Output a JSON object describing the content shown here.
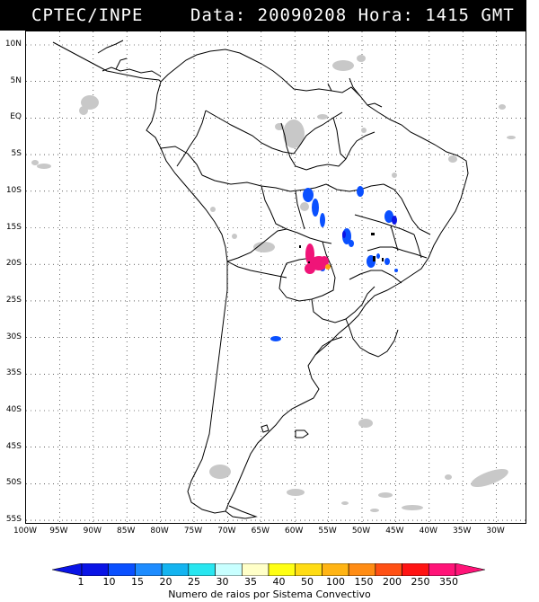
{
  "header": {
    "source": "CPTEC/INPE",
    "date_time": "Data: 20090208 Hora: 1415 GMT"
  },
  "lat_labels": [
    "10N",
    "5N",
    "EQ",
    "5S",
    "10S",
    "15S",
    "20S",
    "25S",
    "30S",
    "35S",
    "40S",
    "45S",
    "50S",
    "55S"
  ],
  "lon_labels": [
    "100W",
    "95W",
    "90W",
    "85W",
    "80W",
    "75W",
    "70W",
    "65W",
    "60W",
    "55W",
    "50W",
    "45W",
    "40W",
    "35W",
    "30W"
  ],
  "legend": {
    "values": [
      "1",
      "10",
      "15",
      "20",
      "25",
      "30",
      "35",
      "40",
      "50",
      "100",
      "150",
      "200",
      "250",
      "350"
    ],
    "colors": [
      "#0a14e6",
      "#0a50ff",
      "#1e8cff",
      "#14b4f0",
      "#28e6f0",
      "#c8ffff",
      "#ffffc8",
      "#ffff14",
      "#ffdc14",
      "#ffb414",
      "#ff8c14",
      "#ff5014",
      "#ff1414",
      "#ff1478"
    ],
    "caption": "Numero de raios por Sistema Convectivo"
  },
  "map": {
    "cloud_color": "#c8c8c8",
    "colors": {
      "blue": "#0a50ff",
      "magenta": "#f01478",
      "orange": "#ffa014"
    }
  }
}
